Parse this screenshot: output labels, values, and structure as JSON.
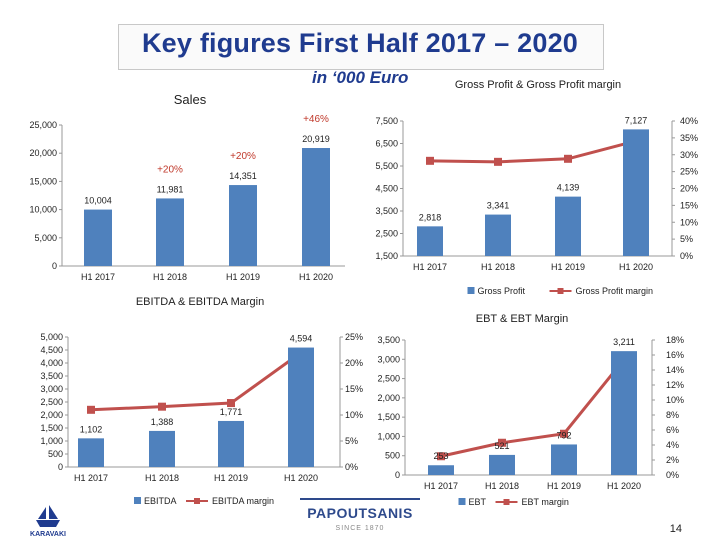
{
  "slide": {
    "title": "Key figures First Half 2017 – 2020",
    "subtitle": "in ‘000 Euro",
    "page_number": "14",
    "brand": "PAPOUTSANIS",
    "brand_sub": "SINCE 1870",
    "logo_text": "KARAVAKI"
  },
  "colors": {
    "bar": "#4f81bd",
    "line": "#c0504d",
    "title": "#1f3b8f",
    "growth": "#c0392b"
  },
  "chart_data": [
    {
      "id": "sales",
      "type": "bar",
      "title": "Sales",
      "categories": [
        "H1 2017",
        "H1 2018",
        "H1 2019",
        "H1 2020"
      ],
      "series": [
        {
          "name": "Sales",
          "values": [
            10004,
            11981,
            14351,
            20919
          ]
        }
      ],
      "data_labels": [
        "10,004",
        "11,981",
        "14,351",
        "20,919"
      ],
      "growth_labels": [
        {
          "text": "+20%",
          "category": "H1 2018"
        },
        {
          "text": "+20%",
          "category": "H1 2019"
        },
        {
          "text": "+46%",
          "category": "H1 2020"
        }
      ],
      "y_ticks": [
        "0",
        "5,000",
        "10,000",
        "15,000",
        "20,000",
        "25,000"
      ],
      "ylim": [
        0,
        25000
      ],
      "grid": false
    },
    {
      "id": "gross_profit",
      "type": "bar+line",
      "title": "Gross Profit & Gross Profit margin",
      "categories": [
        "H1 2017",
        "H1 2018",
        "H1 2019",
        "H1 2020"
      ],
      "series": [
        {
          "name": "Gross Profit",
          "type": "bar",
          "axis": "left",
          "values": [
            2818,
            3341,
            4139,
            7127
          ]
        },
        {
          "name": "Gross Profit margin",
          "type": "line",
          "axis": "right",
          "values": [
            28.2,
            27.9,
            28.8,
            34.1
          ]
        }
      ],
      "data_labels": [
        "2,818",
        "3,341",
        "4,139",
        "7,127"
      ],
      "y_ticks": [
        "1,500",
        "2,500",
        "3,500",
        "4,500",
        "5,500",
        "6,500",
        "7,500"
      ],
      "ylim": [
        1500,
        7500
      ],
      "y2_ticks": [
        "0%",
        "5%",
        "10%",
        "15%",
        "20%",
        "25%",
        "30%",
        "35%",
        "40%"
      ],
      "y2lim": [
        0,
        40
      ],
      "legend": [
        "Gross Profit",
        "Gross Profit margin"
      ],
      "legend_position": "bottom"
    },
    {
      "id": "ebitda",
      "type": "bar+line",
      "title": "EBITDA & EBITDA Margin",
      "categories": [
        "H1 2017",
        "H1 2018",
        "H1 2019",
        "H1 2020"
      ],
      "series": [
        {
          "name": "EBITDA",
          "type": "bar",
          "axis": "left",
          "values": [
            1102,
            1388,
            1771,
            4594
          ]
        },
        {
          "name": "EBITDA margin",
          "type": "line",
          "axis": "right",
          "values": [
            11.0,
            11.6,
            12.3,
            22.0
          ]
        }
      ],
      "data_labels": [
        "1,102",
        "1,388",
        "1,771",
        "4,594"
      ],
      "y_ticks": [
        "0",
        "500",
        "1,000",
        "1,500",
        "2,000",
        "2,500",
        "3,000",
        "3,500",
        "4,000",
        "4,500",
        "5,000"
      ],
      "ylim": [
        0,
        5000
      ],
      "y2_ticks": [
        "0%",
        "5%",
        "10%",
        "15%",
        "20%",
        "25%"
      ],
      "y2lim": [
        0,
        25
      ],
      "legend": [
        "EBITDA",
        "EBITDA margin"
      ],
      "legend_position": "bottom"
    },
    {
      "id": "ebt",
      "type": "bar+line",
      "title": "EBT & EBT Margin",
      "categories": [
        "H1 2017",
        "H1 2018",
        "H1 2019",
        "H1 2020"
      ],
      "series": [
        {
          "name": "EBT",
          "type": "bar",
          "axis": "left",
          "values": [
            253,
            521,
            792,
            3211
          ]
        },
        {
          "name": "EBT margin",
          "type": "line",
          "axis": "right",
          "values": [
            2.5,
            4.3,
            5.5,
            15.4
          ]
        }
      ],
      "data_labels": [
        "253",
        "521",
        "792",
        "3,211"
      ],
      "y_ticks": [
        "0",
        "500",
        "1,000",
        "1,500",
        "2,000",
        "2,500",
        "3,000",
        "3,500"
      ],
      "ylim": [
        0,
        3500
      ],
      "y2_ticks": [
        "0%",
        "2%",
        "4%",
        "6%",
        "8%",
        "10%",
        "12%",
        "14%",
        "16%",
        "18%"
      ],
      "y2lim": [
        0,
        18
      ],
      "legend": [
        "EBT",
        "EBT margin"
      ],
      "legend_position": "bottom"
    }
  ]
}
